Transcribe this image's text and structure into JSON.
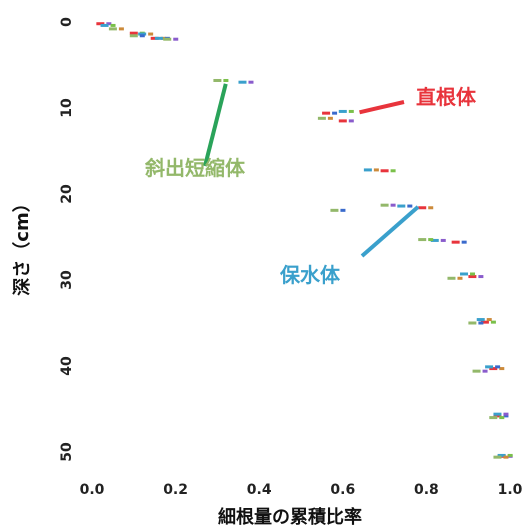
{
  "colors": {
    "tap_root": "#e8343c",
    "water_hold": "#3aa0cc",
    "tilted_short": "#93b86a",
    "arrow_green": "#2aa35a",
    "point_purple": "#8a5ccc",
    "point_green": "#7ac04a",
    "point_orange": "#cc8a3a",
    "point_blue": "#3a6acc"
  },
  "chart_data": {
    "type": "scatter",
    "xlabel": "細根量の累積比率",
    "ylabel": "深さ（cm）",
    "xlim": [
      0.0,
      1.0
    ],
    "ylim": [
      0,
      50
    ],
    "y_inverted": true,
    "x_ticks": [
      "0.0",
      "0.2",
      "0.4",
      "0.6",
      "0.8",
      "1.0"
    ],
    "y_ticks": [
      "0",
      "10",
      "20",
      "30",
      "40",
      "50"
    ],
    "series": [
      {
        "name": "直根体",
        "color": "#e8343c",
        "points": [
          [
            0.02,
            0.2
          ],
          [
            0.1,
            1.3
          ],
          [
            0.15,
            1.9
          ],
          [
            0.56,
            10.6
          ],
          [
            0.6,
            11.5
          ],
          [
            0.7,
            17.3
          ],
          [
            0.79,
            21.6
          ],
          [
            0.87,
            25.6
          ],
          [
            0.91,
            29.6
          ],
          [
            0.94,
            34.9
          ],
          [
            0.96,
            40.3
          ],
          [
            0.97,
            45.8
          ],
          [
            0.98,
            50.5
          ]
        ]
      },
      {
        "name": "保水体",
        "color": "#3aa0cc",
        "points": [
          [
            0.03,
            0.4
          ],
          [
            0.12,
            1.4
          ],
          [
            0.16,
            1.9
          ],
          [
            0.36,
            7.0
          ],
          [
            0.6,
            10.4
          ],
          [
            0.66,
            17.2
          ],
          [
            0.74,
            21.4
          ],
          [
            0.82,
            25.4
          ],
          [
            0.89,
            29.3
          ],
          [
            0.93,
            34.6
          ],
          [
            0.95,
            40.1
          ],
          [
            0.97,
            45.6
          ],
          [
            0.98,
            50.4
          ]
        ]
      },
      {
        "name": "斜出短縮体",
        "color": "#93b86a",
        "points": [
          [
            0.05,
            0.8
          ],
          [
            0.1,
            1.6
          ],
          [
            0.18,
            2.0
          ],
          [
            0.3,
            6.8
          ],
          [
            0.55,
            11.2
          ],
          [
            0.58,
            21.9
          ],
          [
            0.7,
            21.3
          ],
          [
            0.79,
            25.3
          ],
          [
            0.86,
            29.8
          ],
          [
            0.91,
            35.0
          ],
          [
            0.92,
            40.6
          ],
          [
            0.96,
            46.0
          ],
          [
            0.97,
            50.6
          ]
        ]
      }
    ],
    "annotations": [
      {
        "text": "直根体",
        "color": "#e8343c",
        "points_to": [
          0.64,
          10.5
        ]
      },
      {
        "text": "斜出短縮体",
        "color": "#93b86a",
        "points_to": [
          0.32,
          7.2
        ]
      },
      {
        "text": "保水体",
        "color": "#3aa0cc",
        "points_to": [
          0.78,
          21.5
        ]
      }
    ]
  }
}
